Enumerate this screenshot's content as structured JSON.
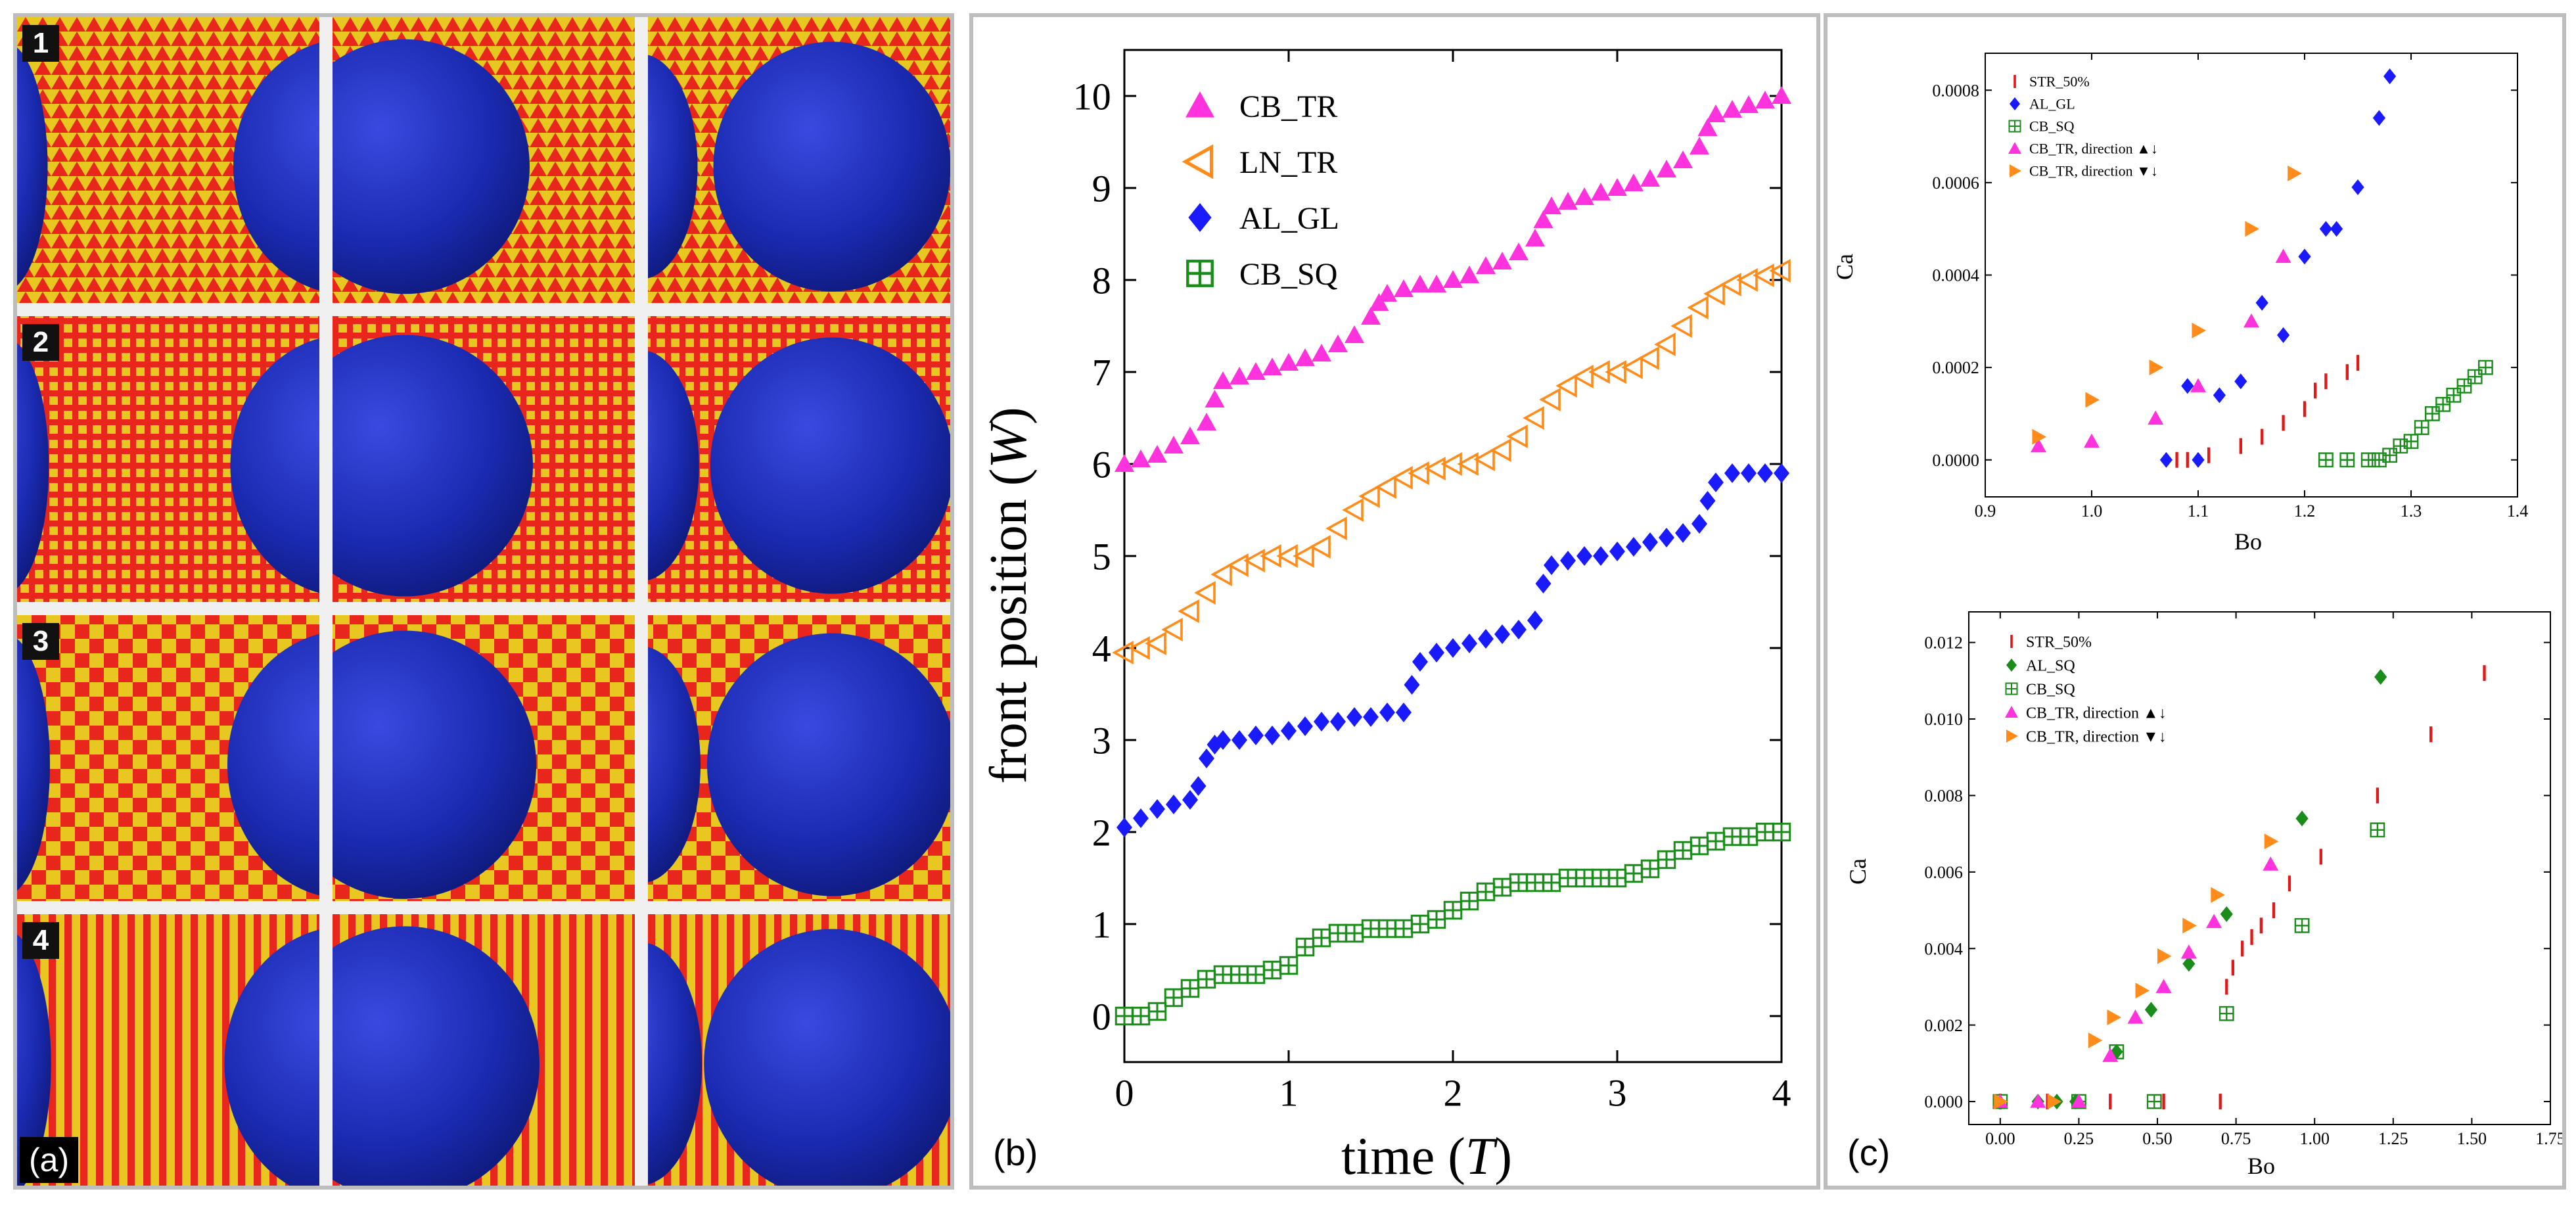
{
  "panel_a": {
    "label": "(a)",
    "rows": [
      {
        "number": "1",
        "pattern": "triangles"
      },
      {
        "number": "2",
        "pattern": "squares"
      },
      {
        "number": "3",
        "pattern": "checker"
      },
      {
        "number": "4",
        "pattern": "stripes"
      }
    ],
    "colors": {
      "substrate_red": "#e8261c",
      "substrate_yellow": "#e8c820",
      "droplet": "#1a2ab0"
    }
  },
  "panel_b": {
    "label": "(b)"
  },
  "panel_c": {
    "label": "(c)"
  },
  "chart_data": [
    {
      "id": "b",
      "type": "scatter",
      "xlabel_main": "time (",
      "xlabel_var": "T",
      "xlabel_end": ")",
      "ylabel_main": "front position (",
      "ylabel_var": "W",
      "ylabel_end": ")",
      "xlim": [
        0,
        4
      ],
      "ylim": [
        -0.5,
        10.5
      ],
      "xticks": [
        "0",
        "1",
        "2",
        "3",
        "4"
      ],
      "yticks": [
        "0",
        "1",
        "2",
        "3",
        "4",
        "5",
        "6",
        "7",
        "8",
        "9",
        "10"
      ],
      "legend_position": "top-left",
      "series": [
        {
          "name": "CB_TR",
          "marker": "triangle-up",
          "color": "#ff33dd",
          "x": [
            0,
            0.1,
            0.2,
            0.3,
            0.4,
            0.5,
            0.55,
            0.6,
            0.7,
            0.8,
            0.9,
            1.0,
            1.1,
            1.2,
            1.3,
            1.4,
            1.5,
            1.55,
            1.6,
            1.7,
            1.8,
            1.9,
            2.0,
            2.1,
            2.2,
            2.3,
            2.4,
            2.5,
            2.55,
            2.6,
            2.7,
            2.8,
            2.9,
            3.0,
            3.1,
            3.2,
            3.3,
            3.4,
            3.5,
            3.55,
            3.6,
            3.7,
            3.8,
            3.9,
            4.0
          ],
          "y": [
            6.0,
            6.05,
            6.1,
            6.2,
            6.3,
            6.45,
            6.7,
            6.9,
            6.95,
            7.0,
            7.05,
            7.1,
            7.15,
            7.2,
            7.3,
            7.4,
            7.6,
            7.75,
            7.85,
            7.9,
            7.95,
            7.95,
            8.0,
            8.05,
            8.15,
            8.2,
            8.3,
            8.45,
            8.65,
            8.8,
            8.85,
            8.9,
            8.95,
            9.0,
            9.05,
            9.1,
            9.2,
            9.3,
            9.45,
            9.65,
            9.8,
            9.85,
            9.9,
            9.95,
            10.0
          ]
        },
        {
          "name": "LN_TR",
          "marker": "triangle-left-open",
          "color": "#ff8c1a",
          "x": [
            0,
            0.1,
            0.2,
            0.3,
            0.4,
            0.5,
            0.6,
            0.7,
            0.8,
            0.9,
            1.0,
            1.1,
            1.2,
            1.3,
            1.4,
            1.5,
            1.6,
            1.7,
            1.8,
            1.9,
            2.0,
            2.1,
            2.2,
            2.3,
            2.4,
            2.5,
            2.6,
            2.7,
            2.8,
            2.9,
            3.0,
            3.1,
            3.2,
            3.3,
            3.4,
            3.5,
            3.6,
            3.7,
            3.8,
            3.9,
            4.0
          ],
          "y": [
            3.95,
            4.0,
            4.05,
            4.2,
            4.4,
            4.6,
            4.8,
            4.9,
            4.95,
            5.0,
            5.0,
            5.0,
            5.1,
            5.3,
            5.5,
            5.65,
            5.75,
            5.85,
            5.9,
            5.95,
            6.0,
            6.0,
            6.05,
            6.15,
            6.3,
            6.5,
            6.7,
            6.85,
            6.95,
            7.0,
            7.0,
            7.05,
            7.15,
            7.3,
            7.5,
            7.7,
            7.85,
            7.95,
            8.0,
            8.05,
            8.1
          ]
        },
        {
          "name": "AL_GL",
          "marker": "diamond",
          "color": "#1a1aff",
          "x": [
            0,
            0.1,
            0.2,
            0.3,
            0.4,
            0.45,
            0.5,
            0.55,
            0.6,
            0.7,
            0.8,
            0.9,
            1.0,
            1.1,
            1.2,
            1.3,
            1.4,
            1.5,
            1.6,
            1.7,
            1.75,
            1.8,
            1.9,
            2.0,
            2.1,
            2.2,
            2.3,
            2.4,
            2.5,
            2.55,
            2.6,
            2.7,
            2.8,
            2.9,
            3.0,
            3.1,
            3.2,
            3.3,
            3.4,
            3.5,
            3.55,
            3.6,
            3.7,
            3.8,
            3.9,
            4.0
          ],
          "y": [
            2.05,
            2.15,
            2.25,
            2.3,
            2.35,
            2.5,
            2.8,
            2.95,
            3.0,
            3.0,
            3.05,
            3.05,
            3.1,
            3.15,
            3.2,
            3.2,
            3.25,
            3.25,
            3.3,
            3.3,
            3.6,
            3.85,
            3.95,
            4.0,
            4.05,
            4.1,
            4.15,
            4.2,
            4.3,
            4.7,
            4.9,
            4.95,
            5.0,
            5.0,
            5.05,
            5.1,
            5.15,
            5.2,
            5.25,
            5.35,
            5.6,
            5.8,
            5.9,
            5.9,
            5.9,
            5.9
          ]
        },
        {
          "name": "CB_SQ",
          "marker": "square-plus-open",
          "color": "#1a8c1a",
          "x": [
            0,
            0.1,
            0.2,
            0.3,
            0.4,
            0.5,
            0.6,
            0.7,
            0.8,
            0.9,
            1.0,
            1.1,
            1.2,
            1.3,
            1.4,
            1.5,
            1.6,
            1.7,
            1.8,
            1.9,
            2.0,
            2.1,
            2.2,
            2.3,
            2.4,
            2.5,
            2.6,
            2.7,
            2.8,
            2.9,
            3.0,
            3.1,
            3.2,
            3.3,
            3.4,
            3.5,
            3.6,
            3.7,
            3.8,
            3.9,
            4.0
          ],
          "y": [
            0.0,
            0.0,
            0.05,
            0.2,
            0.3,
            0.4,
            0.45,
            0.45,
            0.45,
            0.5,
            0.55,
            0.75,
            0.85,
            0.9,
            0.9,
            0.95,
            0.95,
            0.95,
            1.0,
            1.05,
            1.15,
            1.25,
            1.35,
            1.4,
            1.45,
            1.45,
            1.45,
            1.5,
            1.5,
            1.5,
            1.5,
            1.55,
            1.6,
            1.7,
            1.8,
            1.85,
            1.9,
            1.95,
            1.95,
            2.0,
            2.0
          ]
        }
      ]
    },
    {
      "id": "c-top",
      "type": "scatter",
      "xlabel": "Bo",
      "ylabel": "Ca",
      "xlim": [
        0.9,
        1.4
      ],
      "ylim": [
        -8e-05,
        0.00088
      ],
      "xticks": [
        0.9,
        1.0,
        1.1,
        1.2,
        1.3,
        1.4
      ],
      "xtick_labels": [
        "0.9",
        "1.0",
        "1.1",
        "1.2",
        "1.3",
        "1.4"
      ],
      "yticks": [
        0,
        0.0002,
        0.0004,
        0.0006,
        0.0008
      ],
      "ytick_labels": [
        "0.0000",
        "0.0002",
        "0.0004",
        "0.0006",
        "0.0008"
      ],
      "legend_position": "top-left",
      "series": [
        {
          "name": "STR_50%",
          "marker": "bar",
          "color": "#e01818",
          "x": [
            1.08,
            1.09,
            1.11,
            1.14,
            1.16,
            1.18,
            1.2,
            1.21,
            1.22,
            1.24,
            1.25
          ],
          "y": [
            0.0,
            0.0,
            1e-05,
            3e-05,
            5e-05,
            8e-05,
            0.00011,
            0.00015,
            0.00017,
            0.00019,
            0.00021
          ]
        },
        {
          "name": "AL_GL",
          "marker": "diamond",
          "color": "#1a1aff",
          "x": [
            1.07,
            1.09,
            1.1,
            1.12,
            1.14,
            1.16,
            1.18,
            1.2,
            1.22,
            1.23,
            1.25,
            1.27,
            1.28
          ],
          "y": [
            0.0,
            0.00016,
            0.0,
            0.00014,
            0.00017,
            0.00034,
            0.00027,
            0.00044,
            0.0005,
            0.0005,
            0.00059,
            0.00074,
            0.00083
          ]
        },
        {
          "name": "CB_SQ",
          "marker": "square-plus-open",
          "color": "#1a8c1a",
          "x": [
            1.22,
            1.24,
            1.26,
            1.27,
            1.28,
            1.29,
            1.3,
            1.31,
            1.32,
            1.33,
            1.34,
            1.35,
            1.36,
            1.37
          ],
          "y": [
            0.0,
            0.0,
            0.0,
            0.0,
            1e-05,
            3e-05,
            4e-05,
            7e-05,
            0.0001,
            0.00012,
            0.00014,
            0.00016,
            0.00018,
            0.0002
          ]
        },
        {
          "name": "CB_TR, direction ▲↓",
          "marker": "triangle-up",
          "color": "#ff33dd",
          "x": [
            0.95,
            1.0,
            1.06,
            1.1,
            1.15,
            1.18
          ],
          "y": [
            3e-05,
            4e-05,
            9e-05,
            0.00016,
            0.0003,
            0.00044
          ]
        },
        {
          "name": "CB_TR, direction ▼↓",
          "marker": "triangle-right",
          "color": "#ff8c1a",
          "x": [
            0.95,
            1.0,
            1.06,
            1.1,
            1.15,
            1.19
          ],
          "y": [
            5e-05,
            0.00013,
            0.0002,
            0.00028,
            0.0005,
            0.00062
          ]
        }
      ]
    },
    {
      "id": "c-bottom",
      "type": "scatter",
      "xlabel": "Bo",
      "ylabel": "Ca",
      "xlim": [
        -0.1,
        1.75
      ],
      "ylim": [
        -0.0006,
        0.0128
      ],
      "xticks": [
        0,
        0.25,
        0.5,
        0.75,
        1.0,
        1.25,
        1.5,
        1.75
      ],
      "xtick_labels": [
        "0.00",
        "0.25",
        "0.50",
        "0.75",
        "1.00",
        "1.25",
        "1.50",
        "1.75"
      ],
      "yticks": [
        0,
        0.002,
        0.004,
        0.006,
        0.008,
        0.01,
        0.012
      ],
      "ytick_labels": [
        "0.000",
        "0.002",
        "0.004",
        "0.006",
        "0.008",
        "0.010",
        "0.012"
      ],
      "legend_position": "top-left",
      "series": [
        {
          "name": "STR_50%",
          "marker": "bar",
          "color": "#e01818",
          "x": [
            0.0,
            0.15,
            0.35,
            0.52,
            0.7,
            0.72,
            0.74,
            0.77,
            0.8,
            0.83,
            0.87,
            0.92,
            1.02,
            1.2,
            1.37,
            1.54
          ],
          "y": [
            0.0,
            0.0,
            0.0,
            0.0,
            0.0,
            0.003,
            0.0035,
            0.004,
            0.0043,
            0.0046,
            0.005,
            0.0057,
            0.0064,
            0.008,
            0.0096,
            0.0112
          ]
        },
        {
          "name": "AL_SQ",
          "marker": "diamond",
          "color": "#1a8c1a",
          "x": [
            0.12,
            0.18,
            0.24,
            0.37,
            0.48,
            0.6,
            0.72,
            0.96,
            1.21
          ],
          "y": [
            0.0,
            0.0,
            0.0,
            0.0013,
            0.0024,
            0.0036,
            0.0049,
            0.0074,
            0.0111
          ]
        },
        {
          "name": "CB_SQ",
          "marker": "square-plus-open",
          "color": "#1a8c1a",
          "x": [
            0.0,
            0.25,
            0.37,
            0.49,
            0.72,
            0.96,
            1.2
          ],
          "y": [
            0.0,
            0.0,
            0.0013,
            0.0,
            0.0023,
            0.0046,
            0.0071
          ]
        },
        {
          "name": "CB_TR, direction ▲↓",
          "marker": "triangle-up",
          "color": "#ff33dd",
          "x": [
            0.0,
            0.12,
            0.25,
            0.35,
            0.43,
            0.52,
            0.6,
            0.68,
            0.86
          ],
          "y": [
            0.0,
            0.0,
            0.0,
            0.0012,
            0.0022,
            0.003,
            0.0039,
            0.0047,
            0.0062
          ]
        },
        {
          "name": "CB_TR, direction ▼↓",
          "marker": "triangle-right",
          "color": "#ff8c1a",
          "x": [
            0.0,
            0.17,
            0.3,
            0.36,
            0.45,
            0.52,
            0.6,
            0.69,
            0.86
          ],
          "y": [
            0.0,
            0.0,
            0.0016,
            0.0022,
            0.0029,
            0.0038,
            0.0046,
            0.0054,
            0.0068
          ]
        }
      ]
    }
  ]
}
